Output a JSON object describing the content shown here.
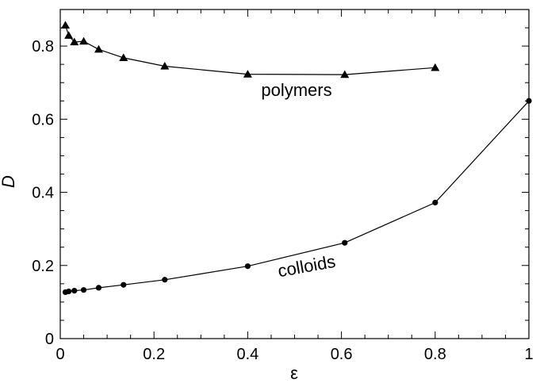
{
  "chart_data": {
    "type": "line",
    "xlabel": "ε",
    "ylabel": "D",
    "xlim": [
      0,
      1
    ],
    "ylim": [
      0,
      0.9
    ],
    "grid": false,
    "x_ticks": [
      "0",
      "0.2",
      "0.4",
      "0.6",
      "0.8",
      "1"
    ],
    "y_ticks": [
      "0",
      "0.2",
      "0.4",
      "0.6",
      "0.8"
    ],
    "series": [
      {
        "name": "polymers",
        "marker": "triangle",
        "color": "#000000",
        "points": [
          {
            "x": 0.011,
            "y": 0.857
          },
          {
            "x": 0.018,
            "y": 0.829
          },
          {
            "x": 0.03,
            "y": 0.811
          },
          {
            "x": 0.05,
            "y": 0.813
          },
          {
            "x": 0.082,
            "y": 0.791
          },
          {
            "x": 0.135,
            "y": 0.768
          },
          {
            "x": 0.223,
            "y": 0.745
          },
          {
            "x": 0.4,
            "y": 0.723
          },
          {
            "x": 0.607,
            "y": 0.722
          },
          {
            "x": 0.8,
            "y": 0.741
          }
        ]
      },
      {
        "name": "colloids",
        "marker": "circle",
        "color": "#000000",
        "points": [
          {
            "x": 0.011,
            "y": 0.127
          },
          {
            "x": 0.018,
            "y": 0.129
          },
          {
            "x": 0.03,
            "y": 0.131
          },
          {
            "x": 0.05,
            "y": 0.133
          },
          {
            "x": 0.082,
            "y": 0.139
          },
          {
            "x": 0.135,
            "y": 0.147
          },
          {
            "x": 0.223,
            "y": 0.161
          },
          {
            "x": 0.4,
            "y": 0.198
          },
          {
            "x": 0.607,
            "y": 0.262
          },
          {
            "x": 0.8,
            "y": 0.372
          },
          {
            "x": 1.0,
            "y": 0.65
          }
        ]
      }
    ]
  }
}
